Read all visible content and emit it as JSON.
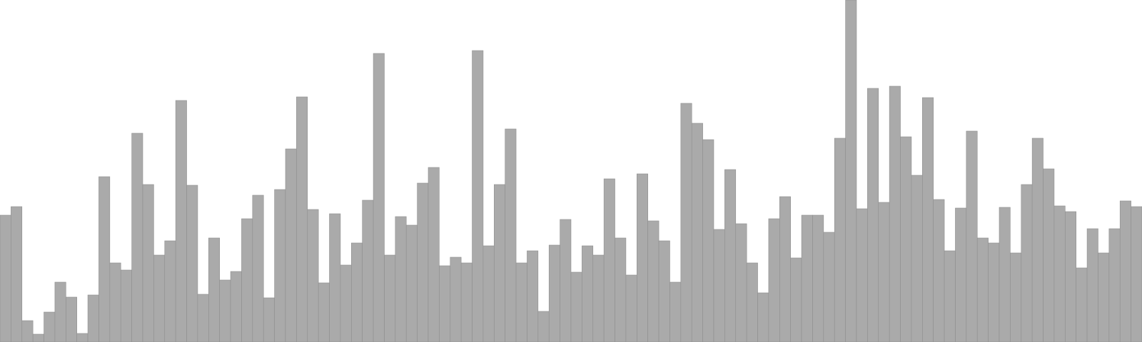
{
  "chart_data": {
    "type": "bar",
    "values": [
      178,
      190,
      30,
      11,
      42,
      84,
      63,
      12,
      66,
      232,
      111,
      101,
      293,
      221,
      122,
      142,
      339,
      220,
      67,
      146,
      87,
      99,
      173,
      206,
      62,
      214,
      271,
      344,
      186,
      83,
      180,
      108,
      139,
      199,
      405,
      122,
      176,
      164,
      223,
      245,
      107,
      119,
      111,
      409,
      135,
      221,
      299,
      111,
      128,
      43,
      136,
      172,
      98,
      135,
      122,
      229,
      146,
      94,
      236,
      170,
      142,
      84,
      335,
      307,
      284,
      158,
      242,
      166,
      111,
      69,
      173,
      204,
      118,
      178,
      178,
      154,
      286,
      480,
      187,
      356,
      196,
      359,
      288,
      234,
      343,
      200,
      128,
      188,
      296,
      146,
      139,
      189,
      125,
      221,
      286,
      243,
      191,
      183,
      104,
      159,
      125,
      159,
      198,
      190
    ],
    "ylim": [
      0,
      480
    ],
    "color": "#aaaaaa",
    "edge_color": "#8f8f8f",
    "grid": false,
    "title": "",
    "xlabel": "",
    "ylabel": ""
  }
}
